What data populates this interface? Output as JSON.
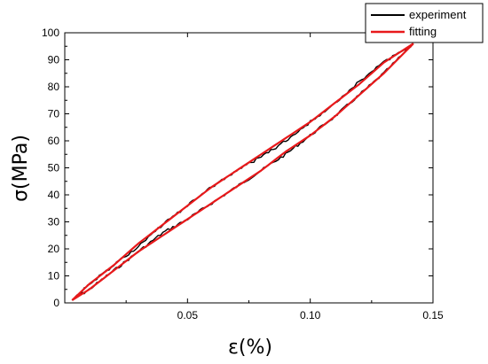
{
  "chart_data": {
    "type": "line",
    "title": "",
    "xlabel": "ε(%)",
    "ylabel": "σ(MPa)",
    "xlim": [
      0.0,
      0.15
    ],
    "ylim": [
      0,
      100
    ],
    "x_ticks": [
      0.05,
      0.1,
      0.15
    ],
    "x_tick_labels": [
      "0.05",
      "0.10",
      "0.15"
    ],
    "y_ticks": [
      0,
      10,
      20,
      30,
      40,
      50,
      60,
      70,
      80,
      90,
      100
    ],
    "y_tick_labels": [
      "0",
      "10",
      "20",
      "30",
      "40",
      "50",
      "60",
      "70",
      "80",
      "90",
      "100"
    ],
    "grid": false,
    "legend_position": "top-right",
    "series": [
      {
        "name": "experiment",
        "color": "#000000",
        "loading": {
          "x": [
            0.003,
            0.01,
            0.02,
            0.03,
            0.04,
            0.05,
            0.06,
            0.07,
            0.08,
            0.09,
            0.1,
            0.11,
            0.12,
            0.13,
            0.142
          ],
          "y": [
            1,
            5,
            12,
            19,
            26,
            31,
            37,
            43,
            49,
            55,
            62,
            69,
            77,
            85,
            96
          ]
        },
        "unloading": {
          "x": [
            0.142,
            0.13,
            0.12,
            0.11,
            0.1,
            0.09,
            0.08,
            0.07,
            0.06,
            0.05,
            0.04,
            0.03,
            0.02,
            0.01,
            0.003
          ],
          "y": [
            96,
            89,
            82,
            74,
            67,
            60,
            54,
            49,
            43,
            36,
            29,
            21,
            14,
            7,
            1
          ]
        }
      },
      {
        "name": "fitting",
        "color": "#e8191b",
        "loading": {
          "x": [
            0.003,
            0.01,
            0.02,
            0.03,
            0.04,
            0.05,
            0.06,
            0.07,
            0.08,
            0.09,
            0.1,
            0.11,
            0.12,
            0.13,
            0.142
          ],
          "y": [
            1,
            5,
            12,
            19,
            25,
            31,
            37,
            43,
            49,
            56,
            62,
            69,
            77,
            85,
            96
          ]
        },
        "unloading": {
          "x": [
            0.142,
            0.13,
            0.12,
            0.11,
            0.1,
            0.09,
            0.08,
            0.07,
            0.06,
            0.05,
            0.04,
            0.03,
            0.02,
            0.01,
            0.003
          ],
          "y": [
            96,
            89,
            81,
            74,
            67,
            61,
            55,
            49,
            43,
            36,
            29,
            22,
            14,
            7,
            1
          ]
        }
      }
    ]
  }
}
